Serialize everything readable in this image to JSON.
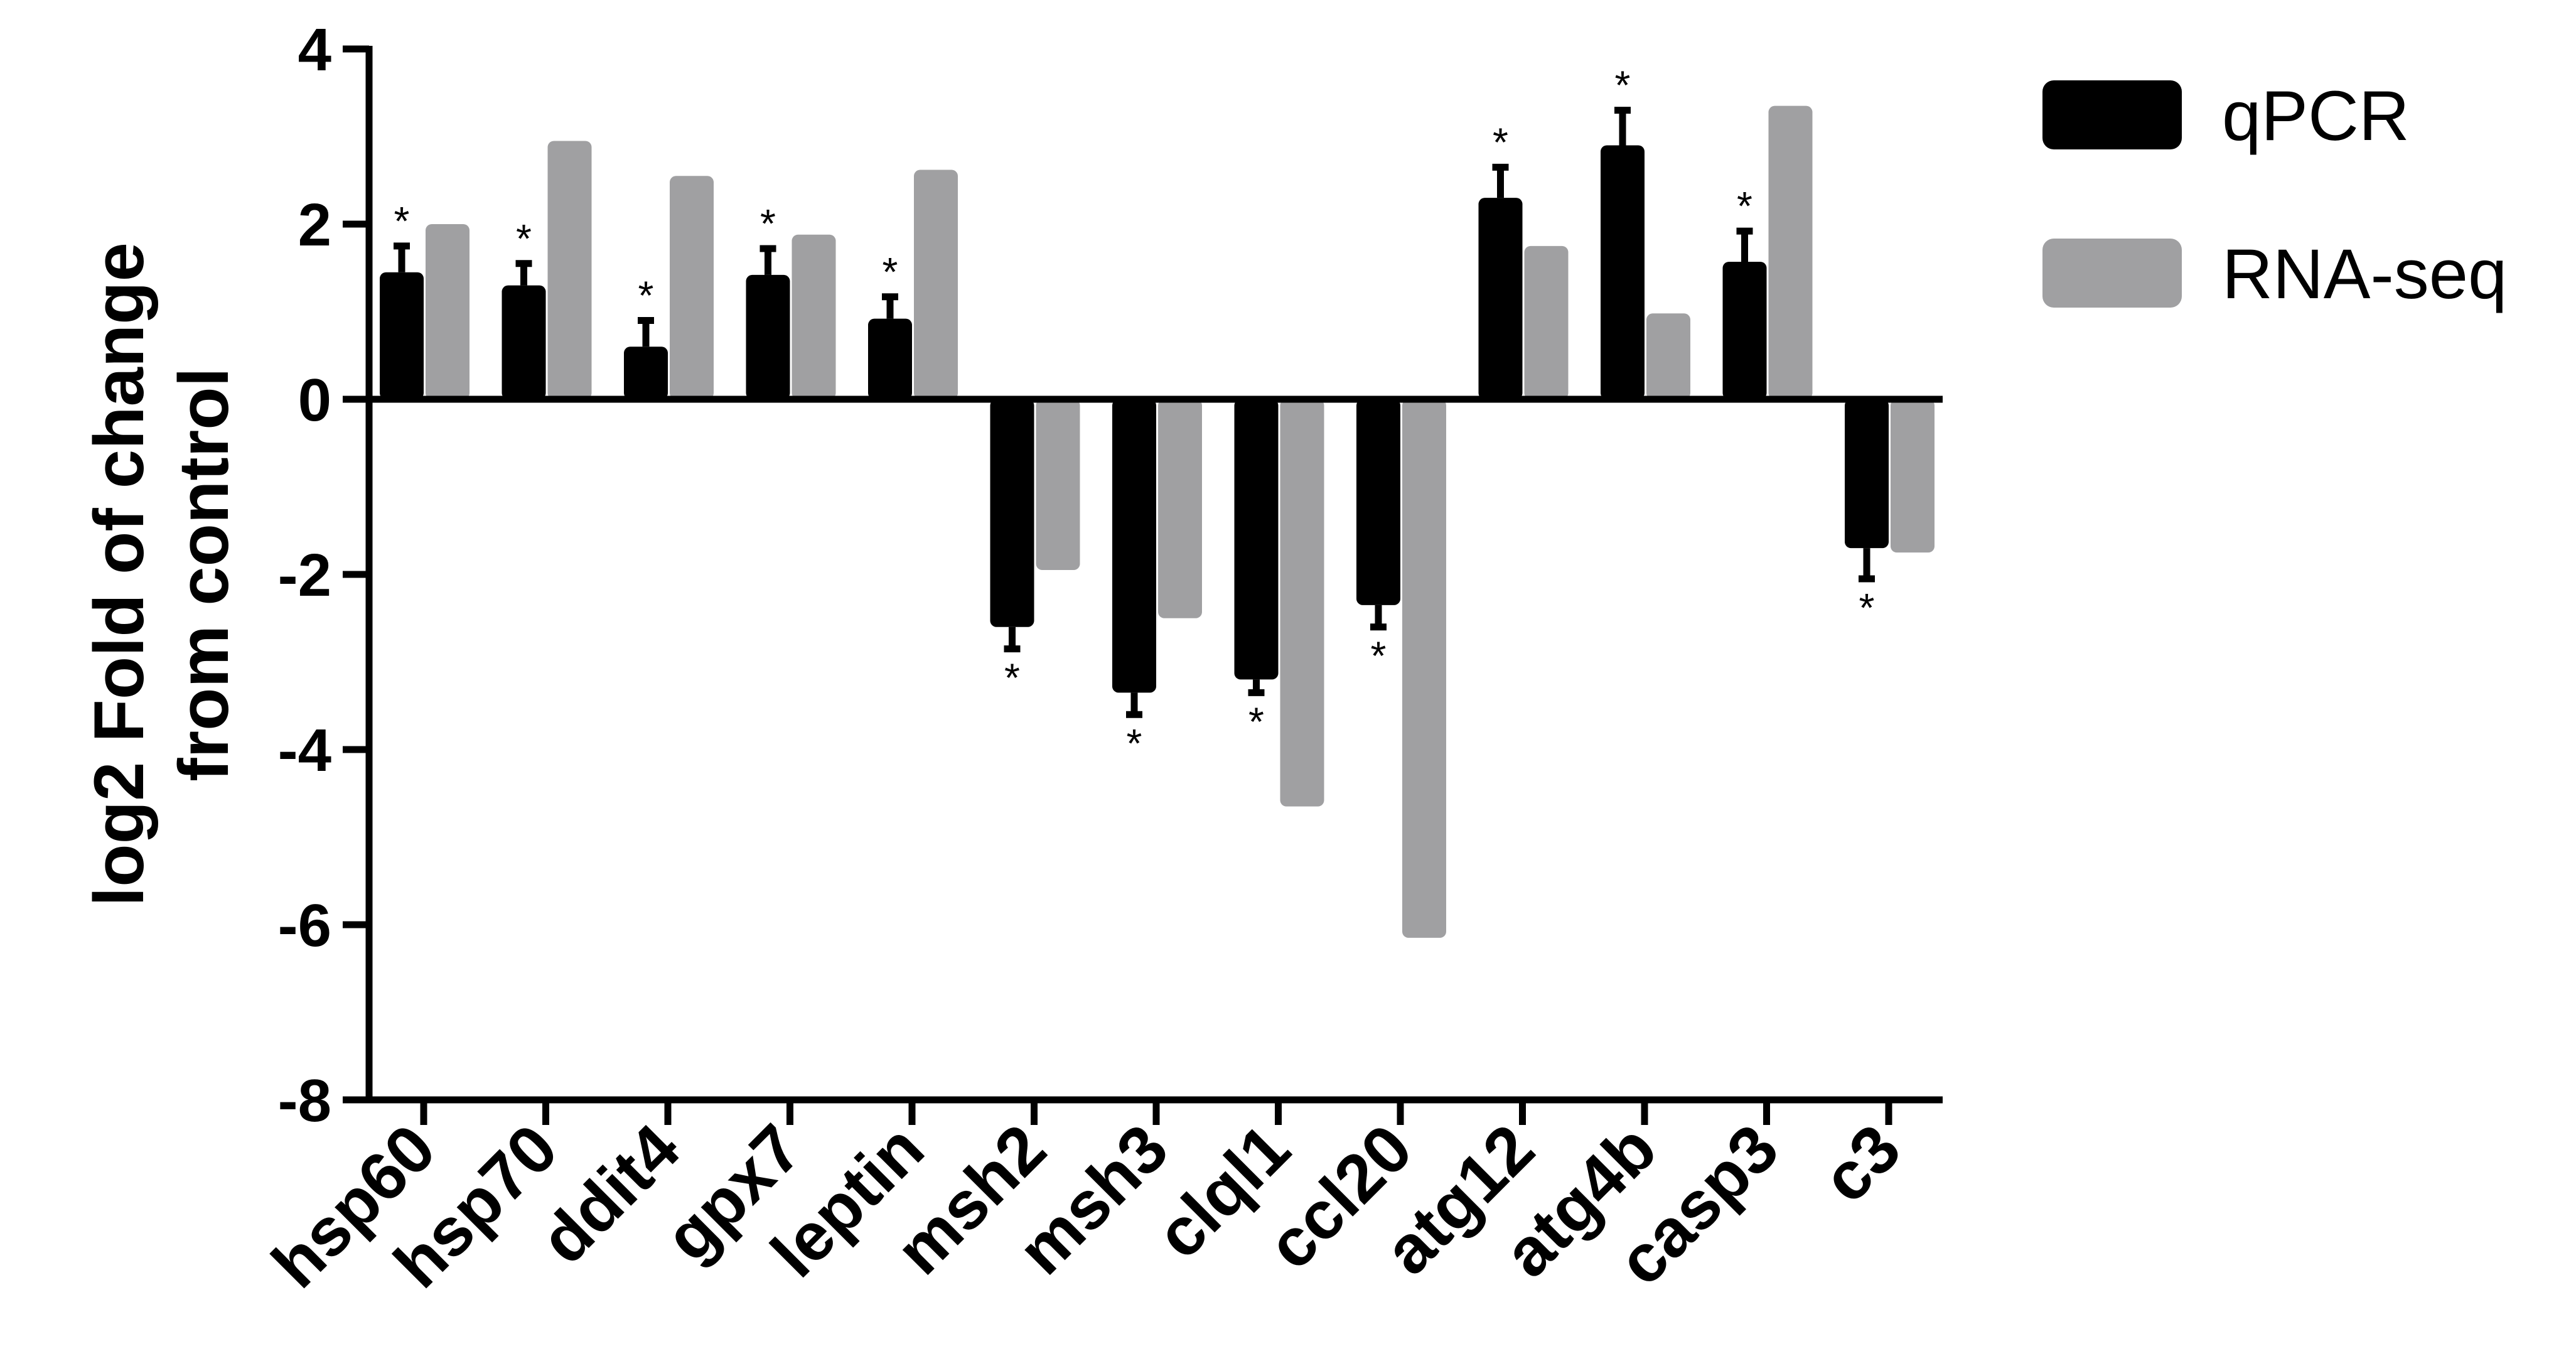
{
  "chart_data": {
    "type": "bar",
    "title": "",
    "xlabel": "",
    "ylabel": "log2 Fold of change from control",
    "ylabel_lines": [
      "log2 Fold of change",
      "from control"
    ],
    "ylim": [
      -8,
      4
    ],
    "yticks": [
      "4",
      "2",
      "0",
      "-2",
      "-4",
      "-6",
      "-8"
    ],
    "ytick_values": [
      4,
      2,
      0,
      -2,
      -4,
      -6,
      -8
    ],
    "categories": [
      "hsp60",
      "hsp70",
      "ddit4",
      "gpx7",
      "leptin",
      "msh2",
      "msh3",
      "clql1",
      "ccl20",
      "atg12",
      "atg4b",
      "casp3",
      "c3"
    ],
    "series": [
      {
        "name": "qPCR",
        "color": "#000000",
        "values": [
          1.45,
          1.3,
          0.6,
          1.42,
          0.92,
          -2.6,
          -3.35,
          -3.2,
          -2.35,
          2.3,
          2.9,
          1.57,
          -1.7
        ],
        "errors": [
          0.3,
          0.25,
          0.3,
          0.3,
          0.25,
          0.25,
          0.25,
          0.15,
          0.25,
          0.35,
          0.4,
          0.35,
          0.35
        ],
        "significance": [
          "*",
          "*",
          "*",
          "*",
          "*",
          "*",
          "*",
          "*",
          "*",
          "*",
          "*",
          "*",
          "*"
        ]
      },
      {
        "name": "RNA-seq",
        "color": "#a0a0a2",
        "values": [
          2.0,
          2.95,
          2.55,
          1.88,
          2.62,
          -1.95,
          -2.5,
          -4.65,
          -6.15,
          1.75,
          0.98,
          3.35,
          -1.75
        ]
      }
    ],
    "legend_position": "top-right",
    "grid": false
  }
}
